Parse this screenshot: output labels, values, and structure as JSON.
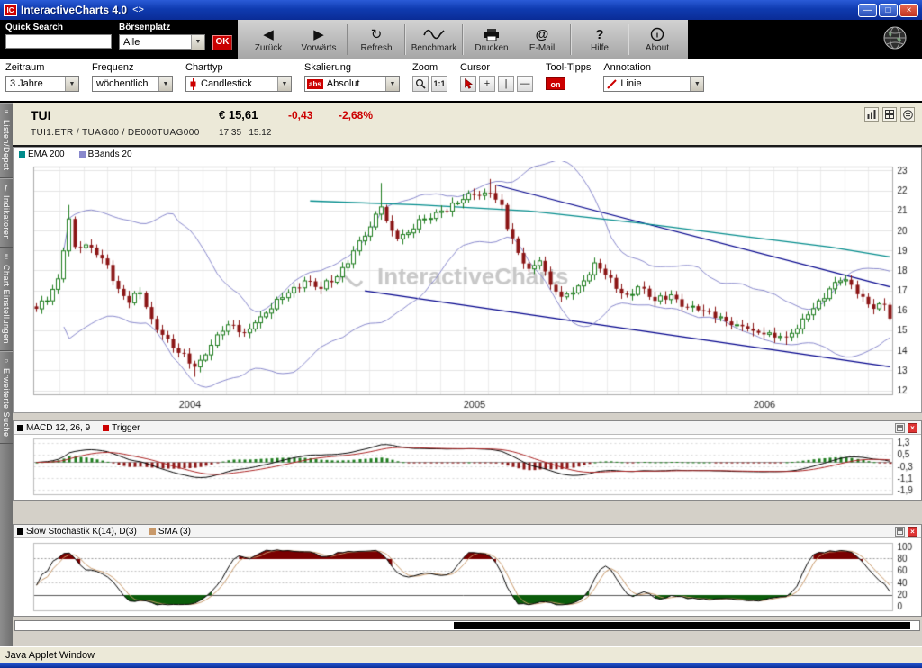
{
  "window": {
    "title": "InteractiveCharts 4.0",
    "title_suffix": "<>",
    "icon_text": "IC",
    "status_bar": "Java Applet Window"
  },
  "search": {
    "label": "Quick Search",
    "value": "",
    "boersenplatz_label": "Börsenplatz",
    "boersenplatz_value": "Alle",
    "ok_label": "OK"
  },
  "toolbar": {
    "buttons": [
      {
        "label": "Zurück",
        "icon": "arrow-left"
      },
      {
        "label": "Vorwärts",
        "icon": "arrow-right"
      },
      {
        "label": "Refresh",
        "icon": "refresh-arrows"
      },
      {
        "label": "Benchmark",
        "icon": "wave-line"
      },
      {
        "label": "Drucken",
        "icon": "printer"
      },
      {
        "label": "E-Mail",
        "icon": "at-sign"
      },
      {
        "label": "Hilfe",
        "icon": "question-mark"
      },
      {
        "label": "About",
        "icon": "info-circle"
      }
    ]
  },
  "filterbar": {
    "zeitraum_label": "Zeitraum",
    "zeitraum_value": "3 Jahre",
    "frequenz_label": "Frequenz",
    "frequenz_value": "wöchentlich",
    "charttyp_label": "Charttyp",
    "charttyp_value": "Candlestick",
    "skalierung_label": "Skalierung",
    "skalierung_badge": "abs",
    "skalierung_value": "Absolut",
    "zoom_label": "Zoom",
    "zoom_one_to_one": "1:1",
    "cursor_label": "Cursor",
    "cursor_buttons": [
      "+",
      "|",
      "—"
    ],
    "tooltipps_label": "Tool-Tipps",
    "tooltipps_state": "on",
    "annotation_label": "Annotation",
    "annotation_value": "Linie"
  },
  "quote": {
    "symbol": "TUI",
    "price": "€ 15,61",
    "change": "-0,43",
    "change_pct": "-2,68%",
    "ids": "TUI1.ETR   /   TUAG00   /   DE000TUAG000",
    "time": "17:35",
    "date": "15.12"
  },
  "sidebar": {
    "items": [
      {
        "label": "Listen/Depot"
      },
      {
        "label": "Indikatoren"
      },
      {
        "label": "Chart Einstellungen"
      },
      {
        "label": "Erweiterte Suche"
      }
    ]
  },
  "chart_data": [
    {
      "type": "candlestick",
      "symbol": "TUI",
      "legend": [
        {
          "label": "EMA 200",
          "color": "#008b8b"
        },
        {
          "label": "BBands 20",
          "color": "#8888cc"
        }
      ],
      "weeks": 157,
      "ylim": [
        11.8,
        23.2
      ],
      "yticks": [
        12,
        13,
        14,
        15,
        16,
        17,
        18,
        19,
        20,
        21,
        22,
        23
      ],
      "xticks": [
        {
          "week": 28,
          "label": "2004"
        },
        {
          "week": 80,
          "label": "2005"
        },
        {
          "week": 133,
          "label": "2006"
        }
      ],
      "close_anchors": [
        [
          0,
          16.1
        ],
        [
          2,
          16.5
        ],
        [
          4,
          17.6
        ],
        [
          5,
          19.0
        ],
        [
          6,
          20.6
        ],
        [
          7,
          19.2
        ],
        [
          9,
          19.3
        ],
        [
          11,
          18.8
        ],
        [
          13,
          18.3
        ],
        [
          15,
          17.1
        ],
        [
          17,
          16.4
        ],
        [
          19,
          16.9
        ],
        [
          21,
          15.6
        ],
        [
          23,
          14.8
        ],
        [
          26,
          13.9
        ],
        [
          29,
          13.2
        ],
        [
          31,
          13.8
        ],
        [
          33,
          14.8
        ],
        [
          35,
          15.3
        ],
        [
          38,
          14.9
        ],
        [
          40,
          15.4
        ],
        [
          43,
          16.1
        ],
        [
          46,
          16.9
        ],
        [
          49,
          17.5
        ],
        [
          52,
          17.1
        ],
        [
          55,
          17.7
        ],
        [
          58,
          19.0
        ],
        [
          61,
          20.2
        ],
        [
          63,
          21.2
        ],
        [
          64,
          20.5
        ],
        [
          66,
          19.6
        ],
        [
          68,
          19.9
        ],
        [
          71,
          20.6
        ],
        [
          74,
          21.0
        ],
        [
          77,
          21.4
        ],
        [
          80,
          21.8
        ],
        [
          83,
          21.9
        ],
        [
          85,
          21.3
        ],
        [
          86,
          20.1
        ],
        [
          88,
          18.9
        ],
        [
          90,
          18.1
        ],
        [
          92,
          18.5
        ],
        [
          94,
          17.3
        ],
        [
          96,
          16.7
        ],
        [
          98,
          16.9
        ],
        [
          100,
          17.5
        ],
        [
          102,
          18.4
        ],
        [
          104,
          17.8
        ],
        [
          106,
          17.1
        ],
        [
          108,
          16.8
        ],
        [
          110,
          17.2
        ],
        [
          113,
          16.5
        ],
        [
          116,
          16.8
        ],
        [
          119,
          16.2
        ],
        [
          122,
          16.0
        ],
        [
          125,
          15.7
        ],
        [
          128,
          15.3
        ],
        [
          131,
          15.0
        ],
        [
          134,
          14.9
        ],
        [
          137,
          14.7
        ],
        [
          139,
          15.1
        ],
        [
          141,
          15.8
        ],
        [
          143,
          16.5
        ],
        [
          145,
          17.1
        ],
        [
          147,
          17.5
        ],
        [
          149,
          17.3
        ],
        [
          151,
          16.7
        ],
        [
          153,
          16.1
        ],
        [
          155,
          16.3
        ],
        [
          156,
          15.61
        ]
      ],
      "wick_overrides": {
        "6": {
          "h": 21.3
        },
        "29": {
          "l": 12.7
        },
        "63": {
          "h": 22.4
        },
        "83": {
          "h": 22.6
        },
        "84": {
          "h": 22.3
        },
        "137": {
          "l": 14.3
        }
      },
      "bband_period": 20,
      "ema200_anchors": [
        [
          50,
          21.5
        ],
        [
          70,
          21.3
        ],
        [
          90,
          21.0
        ],
        [
          110,
          20.4
        ],
        [
          130,
          19.7
        ],
        [
          145,
          19.2
        ],
        [
          156,
          18.7
        ]
      ],
      "trendlines": [
        {
          "x1": 84,
          "y1": 22.3,
          "x2": 156,
          "y2": 17.2
        },
        {
          "x1": 60,
          "y1": 17.0,
          "x2": 156,
          "y2": 13.2
        }
      ],
      "watermark": "InteractiveCharts",
      "colors": {
        "up": "#1e7d1e",
        "down": "#8b1515",
        "grid": "#e4e4e4",
        "vgrid": "#ececec",
        "bband": "#8888cc",
        "ema": "#008b8b",
        "trend": "#00008b",
        "watermark": "#c8c8c8",
        "border": "#aaaaaa",
        "label": "#222222"
      }
    },
    {
      "type": "macd",
      "legend": [
        {
          "label": "MACD 12, 26, 9",
          "color": "#000000"
        },
        {
          "label": "Trigger",
          "color": "#cc0000"
        }
      ],
      "params": {
        "fast": 12,
        "slow": 26,
        "signal": 9
      },
      "ylim": [
        -2.2,
        1.6
      ],
      "yticks": [
        {
          "v": 1.3,
          "label": "1,3"
        },
        {
          "v": 0.5,
          "label": "0,5"
        },
        {
          "v": -0.3,
          "label": "-0,3"
        },
        {
          "v": -1.1,
          "label": "-1,1"
        },
        {
          "v": -1.9,
          "label": "-1,9"
        }
      ],
      "colors": {
        "macd": "#000000",
        "trigger": "#aa2222",
        "hist_up": "#1e7d1e",
        "hist_down": "#8b1515",
        "grid": "#d8d8d8",
        "zero": "#a0a0a0",
        "border": "#bbbbbb",
        "label": "#222222"
      }
    },
    {
      "type": "stochastic",
      "legend": [
        {
          "label": "Slow Stochastik K(14), D(3)",
          "color": "#000000"
        },
        {
          "label": "SMA (3)",
          "color": "#c8996a"
        }
      ],
      "params": {
        "k": 14,
        "d": 3,
        "sma": 3
      },
      "ylim": [
        -6,
        106
      ],
      "yticks": [
        100,
        80,
        60,
        40,
        20,
        0
      ],
      "upper": 80,
      "lower": 20,
      "colors": {
        "k": "#000000",
        "sma": "#c8996a",
        "fill_high": "#7a0000",
        "fill_low": "#0b5c0b",
        "dotted": "#999999",
        "light_dotted": "#c0c0c0",
        "solid": "#555555",
        "border": "#bbbbbb",
        "label": "#222222"
      }
    }
  ]
}
